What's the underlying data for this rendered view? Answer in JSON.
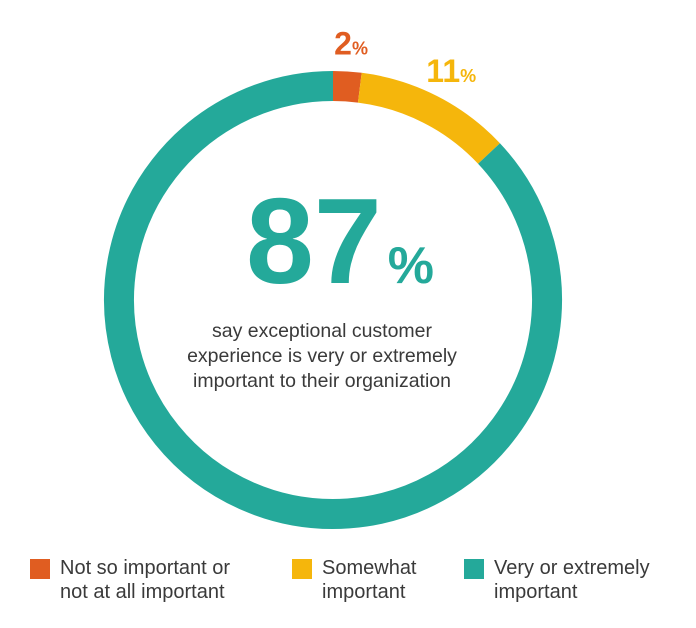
{
  "chart_data": {
    "type": "pie",
    "style": "donut",
    "categories": [
      "Not so important or not at all important",
      "Somewhat important",
      "Very or extremely important"
    ],
    "values": [
      2,
      11,
      87
    ],
    "unit": "%",
    "colors": [
      "#e05d21",
      "#f5b60c",
      "#24a99a"
    ],
    "slice_labels": [
      {
        "number": "2",
        "unit": "%"
      },
      {
        "number": "11",
        "unit": "%"
      },
      {
        "number": "",
        "unit": ""
      }
    ],
    "center": {
      "number": "87",
      "unit": "%",
      "lines": [
        "say exceptional customer",
        "experience is very or extremely",
        "important to their organization"
      ]
    },
    "legend": {
      "placement": "bottom",
      "items": [
        {
          "label": "Not so important or\nnot at all important",
          "color": "#e05d21"
        },
        {
          "label": "Somewhat\nimportant",
          "color": "#f5b60c"
        },
        {
          "label": "Very or extremely\nimportant",
          "color": "#24a99a"
        }
      ]
    }
  }
}
